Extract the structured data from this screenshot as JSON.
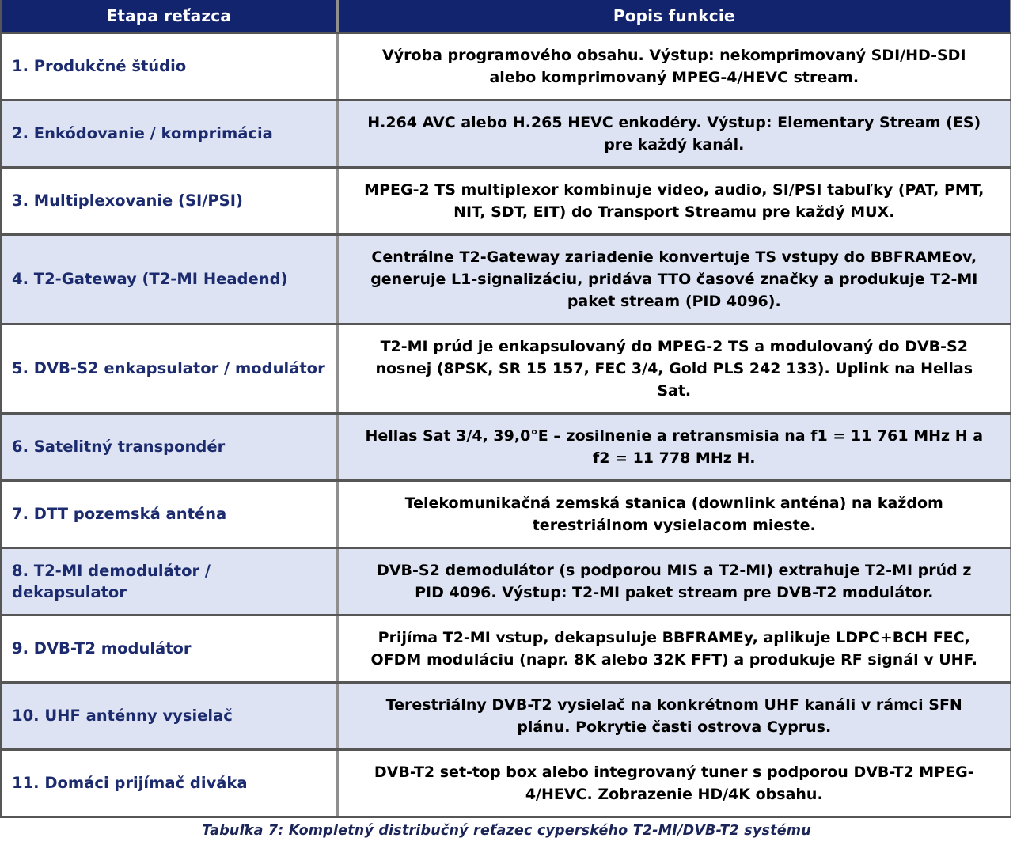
{
  "table": {
    "headers": {
      "stage": "Etapa reťazca",
      "description": "Popis funkcie"
    },
    "rows": [
      {
        "stage": "1. Produkčné štúdio",
        "description": "Výroba programového obsahu. Výstup: nekomprimovaný SDI/HD-SDI alebo komprimovaný MPEG-4/HEVC stream."
      },
      {
        "stage": "2. Enkódovanie / komprimácia",
        "description": "H.264 AVC alebo H.265 HEVC enkodéry. Výstup: Elementary Stream (ES) pre každý kanál."
      },
      {
        "stage": "3. Multiplexovanie (SI/PSI)",
        "description": "MPEG-2 TS multiplexor kombinuje video, audio, SI/PSI tabuľky (PAT, PMT, NIT, SDT, EIT) do Transport Streamu pre každý MUX."
      },
      {
        "stage": "4. T2-Gateway (T2-MI Headend)",
        "description": "Centrálne T2-Gateway zariadenie konvertuje TS vstupy do BBFRAMEov, generuje L1-signalizáciu, pridáva TTO časové značky a produkuje T2-MI paket stream (PID 4096)."
      },
      {
        "stage": "5. DVB-S2 enkapsulator / modulátor",
        "description": "T2-MI prúd je enkapsulovaný do MPEG-2 TS a modulovaný do DVB-S2 nosnej (8PSK, SR 15 157, FEC 3/4, Gold PLS 242 133). Uplink na Hellas Sat."
      },
      {
        "stage": "6. Satelitný transpondér",
        "description": "Hellas Sat 3/4, 39,0°E – zosilnenie a retransmisia na f1 = 11 761 MHz H a f2 = 11 778 MHz H."
      },
      {
        "stage": "7. DTT pozemská anténa",
        "description": "Telekomunikačná zemská stanica (downlink anténa) na každom terestriálnom vysielacom mieste."
      },
      {
        "stage": "8. T2-MI demodulátor / dekapsulator",
        "description": "DVB-S2 demodulátor (s podporou MIS a T2-MI) extrahuje T2-MI prúd z PID 4096. Výstup: T2-MI paket stream pre DVB-T2 modulátor."
      },
      {
        "stage": "9. DVB-T2 modulátor",
        "description": "Prijíma T2-MI vstup, dekapsuluje BBFRAMEy, aplikuje LDPC+BCH FEC, OFDM moduláciu (napr. 8K alebo 32K FFT) a produkuje RF signál v UHF."
      },
      {
        "stage": "10. UHF anténny vysielač",
        "description": "Terestriálny DVB-T2 vysielač na konkrétnom UHF kanáli v rámci SFN plánu. Pokrytie časti ostrova Cyprus."
      },
      {
        "stage": "11. Domáci prijímač diváka",
        "description": "DVB-T2 set-top box alebo integrovaný tuner s podporou DVB-T2 MPEG-4/HEVC. Zobrazenie HD/4K obsahu."
      }
    ],
    "caption": "Tabuľka 7: Kompletný distribučný reťazec cyperského T2-MI/DVB-T2 systému"
  },
  "colors": {
    "header_bg": "#13246e",
    "header_text": "#ffffff",
    "row_bg": "#ffffff",
    "row_alt_bg": "#dde3f2",
    "stage_text": "#1b2b6e",
    "description_text": "#000000",
    "caption_text": "#1b2558",
    "border_dark": "#565656",
    "border_light": "#8f8f8f"
  }
}
